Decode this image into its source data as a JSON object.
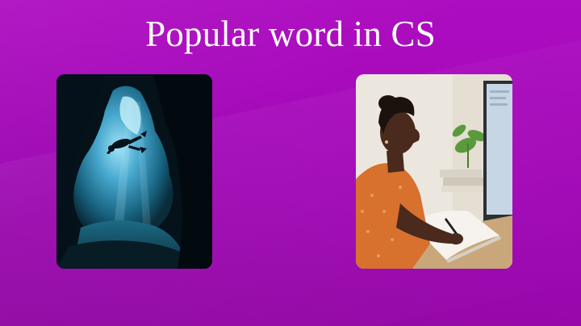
{
  "slide": {
    "title": "Popular word in CS",
    "background_color": "#a409b8"
  },
  "images": [
    {
      "name": "diver-in-underwater-cave",
      "colors": {
        "water": "#49a9cf",
        "rock": "#05121a"
      }
    },
    {
      "name": "person-writing-at-desk",
      "colors": {
        "shirt": "#d8702e",
        "wall": "#ece7de"
      }
    }
  ]
}
